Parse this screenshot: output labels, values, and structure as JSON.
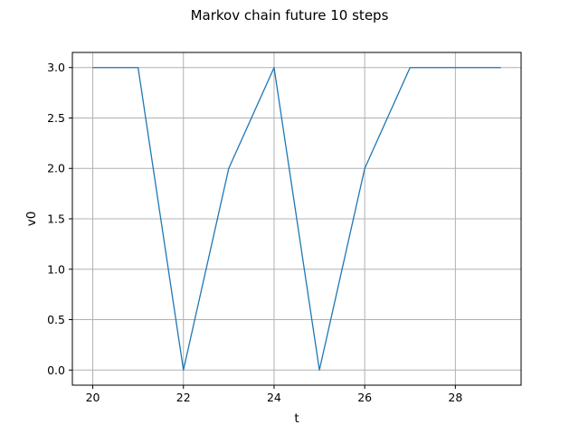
{
  "chart_data": {
    "type": "line",
    "title": "Markov chain future 10 steps",
    "xlabel": "t",
    "ylabel": "v0",
    "x": [
      20,
      21,
      22,
      23,
      24,
      25,
      26,
      27,
      28,
      29
    ],
    "series": [
      {
        "name": "",
        "values": [
          3,
          3,
          0,
          2,
          3,
          0,
          2,
          3,
          3,
          3
        ]
      }
    ],
    "xlim": [
      19.55,
      29.45
    ],
    "ylim": [
      -0.15,
      3.15
    ],
    "xticks": [
      20,
      22,
      24,
      26,
      28
    ],
    "yticks": [
      0.0,
      0.5,
      1.0,
      1.5,
      2.0,
      2.5,
      3.0
    ],
    "xtick_labels": [
      "20",
      "22",
      "24",
      "26",
      "28"
    ],
    "ytick_labels": [
      "0.0",
      "0.5",
      "1.0",
      "1.5",
      "2.0",
      "2.5",
      "3.0"
    ],
    "grid": true,
    "line_color": "#1f77b4"
  }
}
